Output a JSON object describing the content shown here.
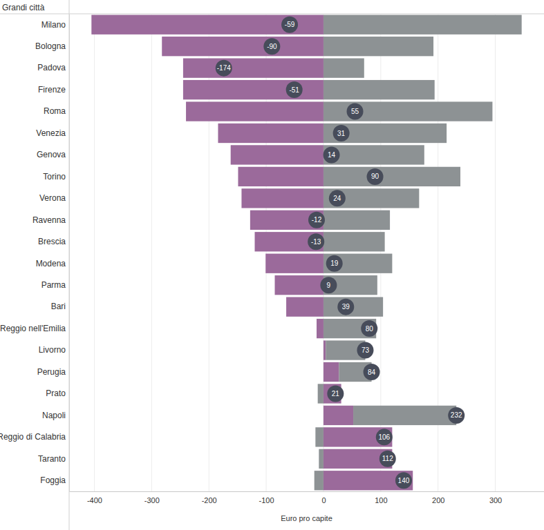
{
  "chart_data": {
    "type": "bar",
    "orientation": "horizontal",
    "stacked": true,
    "grid": true,
    "ylabel": "Grandi città",
    "xlabel": "Euro pro capite",
    "categories": [
      "Milano",
      "Bologna",
      "Padova",
      "Firenze",
      "Roma",
      "Venezia",
      "Genova",
      "Torino",
      "Verona",
      "Ravenna",
      "Brescia",
      "Modena",
      "Parma",
      "Bari",
      "Reggio nell'Emilia",
      "Livorno",
      "Perugia",
      "Prato",
      "Napoli",
      "Reggio di Calabria",
      "Taranto",
      "Foggia"
    ],
    "xlim": [
      -444,
      385
    ],
    "xticks": [
      -400,
      -300,
      -200,
      -100,
      0,
      100,
      200,
      300
    ],
    "series": [
      {
        "color": "#9b6a9b",
        "values": [
          -405,
          -282,
          -245,
          -245,
          -240,
          -184,
          -162,
          -149,
          -143,
          -128,
          -120,
          -101,
          -85,
          -65,
          -12,
          4,
          27,
          31,
          52,
          120,
          120,
          156
        ]
      },
      {
        "color": "#8d9294",
        "values": [
          346,
          192,
          71,
          194,
          295,
          215,
          176,
          239,
          167,
          116,
          107,
          120,
          94,
          104,
          92,
          69,
          57,
          -10,
          180,
          -14,
          -8,
          -16
        ]
      },
      {
        "type": "scatter",
        "marker": "circle",
        "color": "#474c5a",
        "data_labels": true,
        "values": [
          -59,
          -90,
          -174,
          -51,
          55,
          31,
          14,
          90,
          24,
          -12,
          -13,
          19,
          9,
          39,
          80,
          73,
          84,
          21,
          232,
          106,
          112,
          140
        ]
      }
    ]
  }
}
